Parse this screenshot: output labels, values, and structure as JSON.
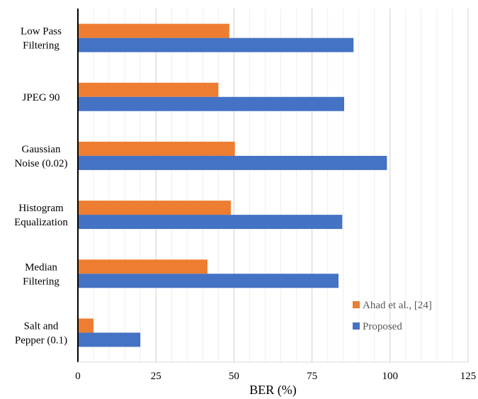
{
  "chart_data": {
    "type": "bar",
    "orientation": "horizontal",
    "categories": [
      [
        "Low Pass",
        "Filtering"
      ],
      [
        "JPEG 90"
      ],
      [
        "Gaussian",
        "Noise (0.02)"
      ],
      [
        "Histogram",
        "Equalization"
      ],
      [
        "Median",
        "Filtering"
      ],
      [
        "Salt and",
        "Pepper (0.1)"
      ]
    ],
    "series": [
      {
        "name": "Ahad et al., [24]",
        "color": "#ED7D31",
        "values": [
          48.5,
          45,
          50.3,
          49,
          41.5,
          5
        ]
      },
      {
        "name": "Proposed",
        "color": "#4472C4",
        "values": [
          88.3,
          85.3,
          99,
          84.7,
          83.5,
          20
        ]
      }
    ],
    "xlabel": "BER (%)",
    "xlim": [
      0,
      125
    ],
    "xticks": [
      0,
      25,
      50,
      75,
      100,
      125
    ],
    "grid": true,
    "legend_position": "lower-right"
  }
}
